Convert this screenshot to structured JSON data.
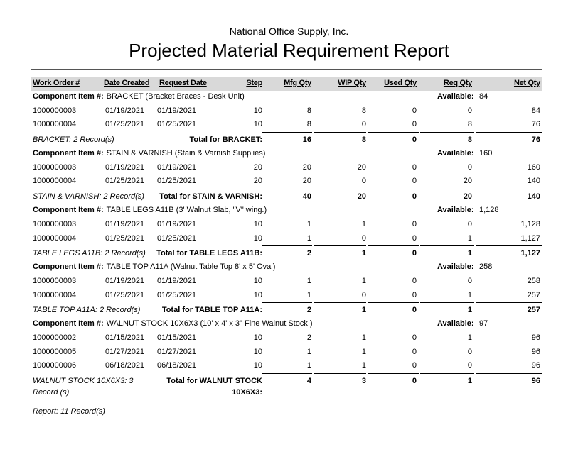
{
  "company": "National Office Supply, Inc.",
  "title": "Projected Material Requirement Report",
  "columns": {
    "work_order": "Work Order #",
    "date_created": "Date Created",
    "request_date": "Request Date",
    "step": "Step",
    "mfg": "Mfg Qty",
    "wip": "WIP Qty",
    "used": "Used Qty",
    "req": "Req Qty",
    "net": "Net Qty"
  },
  "component_label": "Component Item #:",
  "available_label": "Available:",
  "groups": [
    {
      "item": "BRACKET (Bracket Braces - Desk Unit)",
      "available": "84",
      "summary": "BRACKET: 2 Record(s)",
      "total_label": "Total for BRACKET:",
      "rows": [
        [
          "1000000003",
          "01/19/2021",
          "01/19/2021",
          "10",
          "8",
          "8",
          "0",
          "0",
          "84"
        ],
        [
          "1000000004",
          "01/25/2021",
          "01/25/2021",
          "10",
          "8",
          "0",
          "0",
          "8",
          "76"
        ]
      ],
      "totals": [
        "16",
        "8",
        "0",
        "8",
        "76"
      ]
    },
    {
      "item": "STAIN & VARNISH (Stain & Varnish Supplies)",
      "available": "160",
      "summary": "STAIN & VARNISH: 2 Record(s)",
      "total_label": "Total for STAIN & VARNISH:",
      "rows": [
        [
          "1000000003",
          "01/19/2021",
          "01/19/2021",
          "20",
          "20",
          "20",
          "0",
          "0",
          "160"
        ],
        [
          "1000000004",
          "01/25/2021",
          "01/25/2021",
          "20",
          "20",
          "0",
          "0",
          "20",
          "140"
        ]
      ],
      "totals": [
        "40",
        "20",
        "0",
        "20",
        "140"
      ]
    },
    {
      "item": "TABLE LEGS A11B (3' Walnut Slab, \"V\" wing.)",
      "available": "1,128",
      "summary": "TABLE LEGS A11B: 2 Record(s)",
      "total_label": "Total for TABLE LEGS A11B:",
      "rows": [
        [
          "1000000003",
          "01/19/2021",
          "01/19/2021",
          "10",
          "1",
          "1",
          "0",
          "0",
          "1,128"
        ],
        [
          "1000000004",
          "01/25/2021",
          "01/25/2021",
          "10",
          "1",
          "0",
          "0",
          "1",
          "1,127"
        ]
      ],
      "totals": [
        "2",
        "1",
        "0",
        "1",
        "1,127"
      ]
    },
    {
      "item": "TABLE TOP A11A (Walnut Table Top 8' x 5' Oval)",
      "available": "258",
      "summary": "TABLE TOP A11A: 2 Record(s)",
      "total_label": "Total for TABLE TOP A11A:",
      "rows": [
        [
          "1000000003",
          "01/19/2021",
          "01/19/2021",
          "10",
          "1",
          "1",
          "0",
          "0",
          "258"
        ],
        [
          "1000000004",
          "01/25/2021",
          "01/25/2021",
          "10",
          "1",
          "0",
          "0",
          "1",
          "257"
        ]
      ],
      "totals": [
        "2",
        "1",
        "0",
        "1",
        "257"
      ]
    },
    {
      "item": "WALNUT STOCK 10X6X3 (10' x 4' x 3\" Fine Walnut Stock )",
      "available": "97",
      "summary": "WALNUT STOCK 10X6X3: 3 Record (s)",
      "total_label": "Total for WALNUT STOCK 10X6X3:",
      "rows": [
        [
          "1000000002",
          "01/15/2021",
          "01/15/2021",
          "10",
          "2",
          "1",
          "0",
          "1",
          "96"
        ],
        [
          "1000000005",
          "01/27/2021",
          "01/27/2021",
          "10",
          "1",
          "1",
          "0",
          "0",
          "96"
        ],
        [
          "1000000006",
          "06/18/2021",
          "06/18/2021",
          "10",
          "1",
          "1",
          "0",
          "0",
          "96"
        ]
      ],
      "totals": [
        "4",
        "3",
        "0",
        "1",
        "96"
      ]
    }
  ],
  "footer": "Report: 11 Record(s)"
}
